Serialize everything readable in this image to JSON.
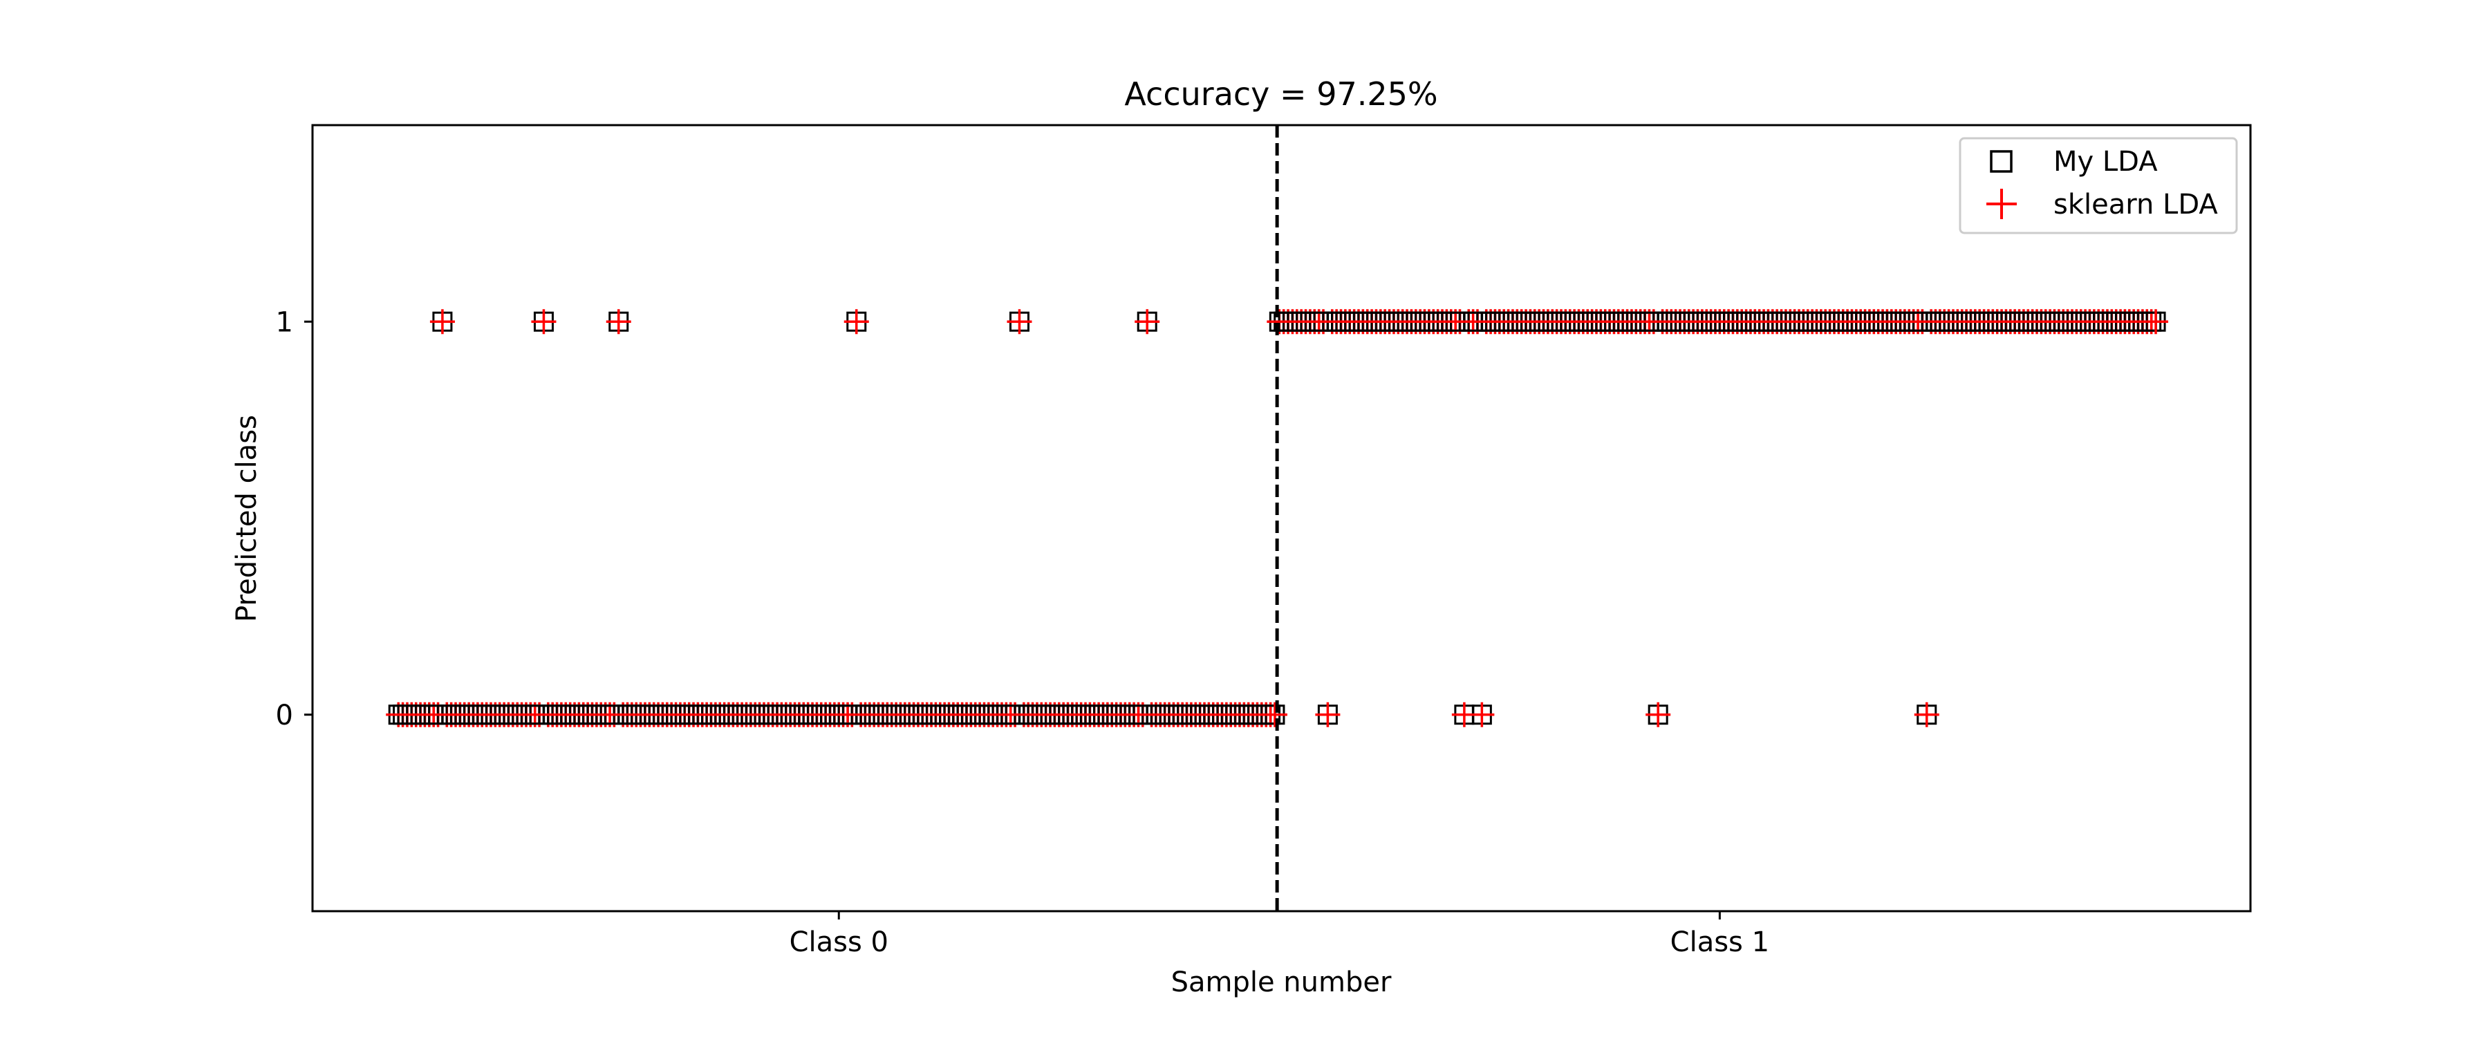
{
  "chart_data": {
    "type": "scatter",
    "title": "Accuracy = 97.25%",
    "xlabel": "Sample number",
    "ylabel": "Predicted class",
    "x_ticks": [
      {
        "x": 100,
        "label": "Class 0"
      },
      {
        "x": 300,
        "label": "Class 1"
      }
    ],
    "y_ticks": [
      {
        "y": 0,
        "label": "0"
      },
      {
        "y": 1,
        "label": "1"
      }
    ],
    "xlim": [
      -19.5,
      420.5
    ],
    "ylim": [
      -0.5,
      1.5
    ],
    "class_boundary_x": 199.5,
    "grid": false,
    "legend_position": "top-right",
    "n_samples": 400,
    "series": [
      {
        "name": "My LDA",
        "marker": "square",
        "color": "#000000"
      },
      {
        "name": "sklearn LDA",
        "marker": "plus",
        "color": "#ff0000"
      }
    ],
    "misclassified_class0_indices": [
      10,
      33,
      50,
      104,
      141,
      170
    ],
    "misclassified_class1_indices": [
      211,
      242,
      246,
      286,
      347
    ]
  }
}
